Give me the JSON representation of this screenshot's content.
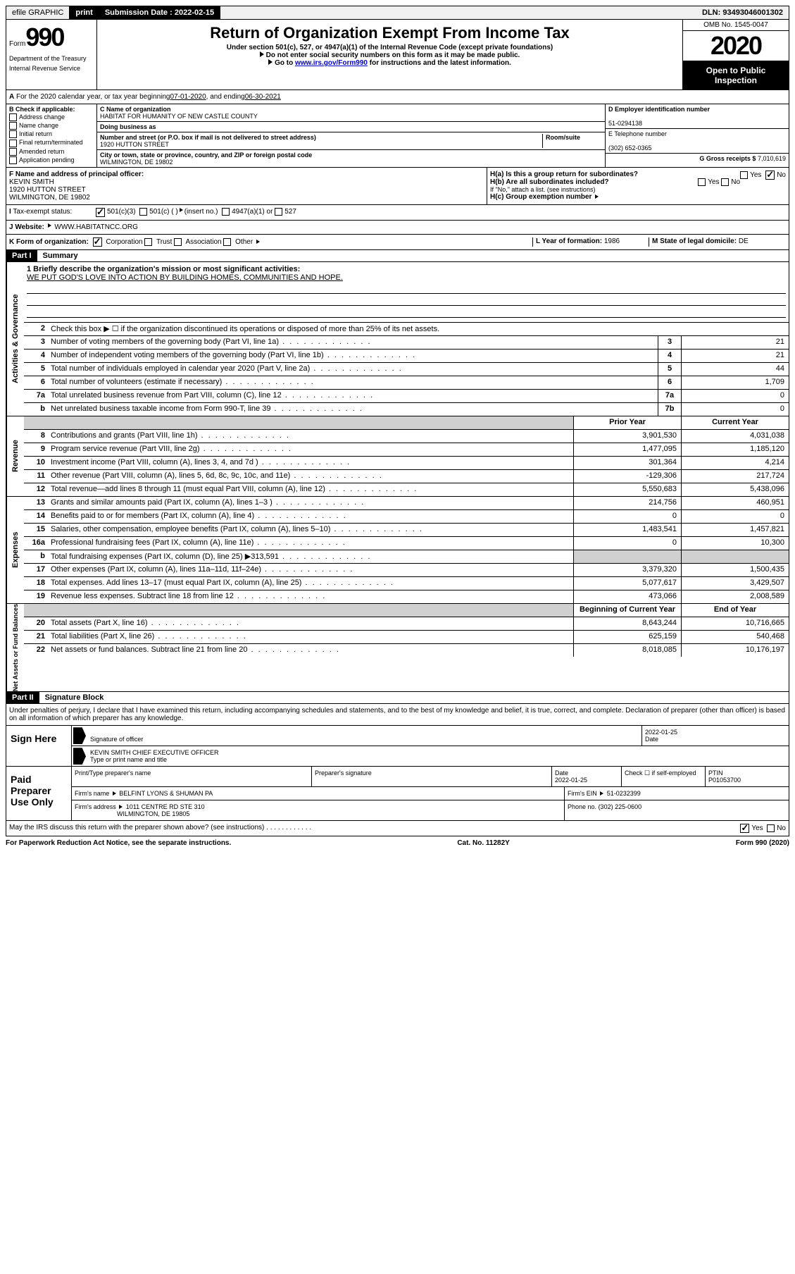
{
  "topbar": {
    "efile": "efile GRAPHIC",
    "print": "print",
    "submission_label": "Submission Date :",
    "submission_date": "2022-02-15",
    "dln_label": "DLN:",
    "dln": "93493046001302"
  },
  "header": {
    "form_label": "Form",
    "form_number": "990",
    "dept1": "Department of the Treasury",
    "dept2": "Internal Revenue Service",
    "title": "Return of Organization Exempt From Income Tax",
    "subtitle": "Under section 501(c), 527, or 4947(a)(1) of the Internal Revenue Code (except private foundations)",
    "note1": "Do not enter social security numbers on this form as it may be made public.",
    "note2_pre": "Go to ",
    "note2_link": "www.irs.gov/Form990",
    "note2_post": " for instructions and the latest information.",
    "omb": "OMB No. 1545-0047",
    "year": "2020",
    "open": "Open to Public Inspection"
  },
  "line_a": {
    "text_pre": "For the 2020 calendar year, or tax year beginning ",
    "begin": "07-01-2020",
    "mid": " , and ending ",
    "end": "06-30-2021"
  },
  "box_b": {
    "label": "B Check if applicable:",
    "opts": [
      "Address change",
      "Name change",
      "Initial return",
      "Final return/terminated",
      "Amended return",
      "Application pending"
    ]
  },
  "box_c": {
    "name_label": "C Name of organization",
    "name": "HABITAT FOR HUMANITY OF NEW CASTLE COUNTY",
    "dba_label": "Doing business as",
    "street_label": "Number and street (or P.O. box if mail is not delivered to street address)",
    "room_label": "Room/suite",
    "street": "1920 HUTTON STREET",
    "city_label": "City or town, state or province, country, and ZIP or foreign postal code",
    "city": "WILMINGTON, DE  19802"
  },
  "box_d": {
    "ein_label": "D Employer identification number",
    "ein": "51-0294138",
    "phone_label": "E Telephone number",
    "phone": "(302) 652-0365",
    "gross_label": "G Gross receipts $",
    "gross": "7,010,619"
  },
  "box_f": {
    "label": "F Name and address of principal officer:",
    "name": "KEVIN SMITH",
    "addr1": "1920 HUTTON STREET",
    "addr2": "WILMINGTON, DE  19802"
  },
  "box_h": {
    "ha": "H(a)  Is this a group return for subordinates?",
    "hb": "H(b)  Are all subordinates included?",
    "hb_note": "If \"No,\" attach a list. (see instructions)",
    "hc": "H(c)  Group exemption number",
    "yes": "Yes",
    "no": "No"
  },
  "box_i": {
    "label": "Tax-exempt status:",
    "opt1": "501(c)(3)",
    "opt2": "501(c) (  )",
    "opt2_note": "(insert no.)",
    "opt3": "4947(a)(1) or",
    "opt4": "527"
  },
  "box_j": {
    "label": "J   Website:",
    "val": "WWW.HABITATNCC.ORG"
  },
  "box_k": {
    "label": "K Form of organization:",
    "opts": [
      "Corporation",
      "Trust",
      "Association",
      "Other"
    ]
  },
  "box_l": {
    "label": "L Year of formation:",
    "val": "1986"
  },
  "box_m": {
    "label": "M State of legal domicile:",
    "val": "DE"
  },
  "part1": {
    "header": "Part I",
    "title": "Summary",
    "q1_label": "1  Briefly describe the organization's mission or most significant activities:",
    "q1_val": "WE PUT GOD'S LOVE INTO ACTION BY BUILDING HOMES, COMMUNITIES AND HOPE.",
    "q2": "Check this box ▶ ☐  if the organization discontinued its operations or disposed of more than 25% of its net assets."
  },
  "governance_rows": [
    {
      "n": "3",
      "desc": "Number of voting members of the governing body (Part VI, line 1a)",
      "box": "3",
      "v": "21"
    },
    {
      "n": "4",
      "desc": "Number of independent voting members of the governing body (Part VI, line 1b)",
      "box": "4",
      "v": "21"
    },
    {
      "n": "5",
      "desc": "Total number of individuals employed in calendar year 2020 (Part V, line 2a)",
      "box": "5",
      "v": "44"
    },
    {
      "n": "6",
      "desc": "Total number of volunteers (estimate if necessary)",
      "box": "6",
      "v": "1,709"
    },
    {
      "n": "7a",
      "desc": "Total unrelated business revenue from Part VIII, column (C), line 12",
      "box": "7a",
      "v": "0"
    },
    {
      "n": "b",
      "desc": "Net unrelated business taxable income from Form 990-T, line 39",
      "box": "7b",
      "v": "0"
    }
  ],
  "col_headers": {
    "prior": "Prior Year",
    "current": "Current Year"
  },
  "revenue_rows": [
    {
      "n": "8",
      "desc": "Contributions and grants (Part VIII, line 1h)",
      "p": "3,901,530",
      "c": "4,031,038"
    },
    {
      "n": "9",
      "desc": "Program service revenue (Part VIII, line 2g)",
      "p": "1,477,095",
      "c": "1,185,120"
    },
    {
      "n": "10",
      "desc": "Investment income (Part VIII, column (A), lines 3, 4, and 7d )",
      "p": "301,364",
      "c": "4,214"
    },
    {
      "n": "11",
      "desc": "Other revenue (Part VIII, column (A), lines 5, 6d, 8c, 9c, 10c, and 11e)",
      "p": "-129,306",
      "c": "217,724"
    },
    {
      "n": "12",
      "desc": "Total revenue—add lines 8 through 11 (must equal Part VIII, column (A), line 12)",
      "p": "5,550,683",
      "c": "5,438,096"
    }
  ],
  "expense_rows": [
    {
      "n": "13",
      "desc": "Grants and similar amounts paid (Part IX, column (A), lines 1–3 )",
      "p": "214,756",
      "c": "460,951"
    },
    {
      "n": "14",
      "desc": "Benefits paid to or for members (Part IX, column (A), line 4)",
      "p": "0",
      "c": "0"
    },
    {
      "n": "15",
      "desc": "Salaries, other compensation, employee benefits (Part IX, column (A), lines 5–10)",
      "p": "1,483,541",
      "c": "1,457,821"
    },
    {
      "n": "16a",
      "desc": "Professional fundraising fees (Part IX, column (A), line 11e)",
      "p": "0",
      "c": "10,300"
    },
    {
      "n": "b",
      "desc": "Total fundraising expenses (Part IX, column (D), line 25) ▶313,591",
      "p": "",
      "c": "",
      "shaded": true
    },
    {
      "n": "17",
      "desc": "Other expenses (Part IX, column (A), lines 11a–11d, 11f–24e)",
      "p": "3,379,320",
      "c": "1,500,435"
    },
    {
      "n": "18",
      "desc": "Total expenses. Add lines 13–17 (must equal Part IX, column (A), line 25)",
      "p": "5,077,617",
      "c": "3,429,507"
    },
    {
      "n": "19",
      "desc": "Revenue less expenses. Subtract line 18 from line 12",
      "p": "473,066",
      "c": "2,008,589"
    }
  ],
  "net_headers": {
    "begin": "Beginning of Current Year",
    "end": "End of Year"
  },
  "net_rows": [
    {
      "n": "20",
      "desc": "Total assets (Part X, line 16)",
      "p": "8,643,244",
      "c": "10,716,665"
    },
    {
      "n": "21",
      "desc": "Total liabilities (Part X, line 26)",
      "p": "625,159",
      "c": "540,468"
    },
    {
      "n": "22",
      "desc": "Net assets or fund balances. Subtract line 21 from line 20",
      "p": "8,018,085",
      "c": "10,176,197"
    }
  ],
  "side_labels": {
    "gov": "Activities & Governance",
    "rev": "Revenue",
    "exp": "Expenses",
    "net": "Net Assets or Fund Balances"
  },
  "part2": {
    "header": "Part II",
    "title": "Signature Block",
    "declaration": "Under penalties of perjury, I declare that I have examined this return, including accompanying schedules and statements, and to the best of my knowledge and belief, it is true, correct, and complete. Declaration of preparer (other than officer) is based on all information of which preparer has any knowledge."
  },
  "sign": {
    "label": "Sign Here",
    "sig_label": "Signature of officer",
    "date_label": "Date",
    "date": "2022-01-25",
    "name": "KEVIN SMITH CHIEF EXECUTIVE OFFICER",
    "name_label": "Type or print name and title"
  },
  "preparer": {
    "label": "Paid Preparer Use Only",
    "print_label": "Print/Type preparer's name",
    "sig_label": "Preparer's signature",
    "date_label": "Date",
    "date": "2022-01-25",
    "check_label": "Check ☐ if self-employed",
    "ptin_label": "PTIN",
    "ptin": "P01053700",
    "firm_name_label": "Firm's name",
    "firm_name": "BELFINT LYONS & SHUMAN PA",
    "firm_ein_label": "Firm's EIN",
    "firm_ein": "51-0232399",
    "firm_addr_label": "Firm's address",
    "firm_addr1": "1011 CENTRE RD STE 310",
    "firm_addr2": "WILMINGTON, DE  19805",
    "phone_label": "Phone no.",
    "phone": "(302) 225-0600"
  },
  "discuss": {
    "q": "May the IRS discuss this return with the preparer shown above? (see instructions)",
    "yes": "Yes",
    "no": "No"
  },
  "footer": {
    "left": "For Paperwork Reduction Act Notice, see the separate instructions.",
    "mid": "Cat. No. 11282Y",
    "right": "Form 990 (2020)"
  }
}
